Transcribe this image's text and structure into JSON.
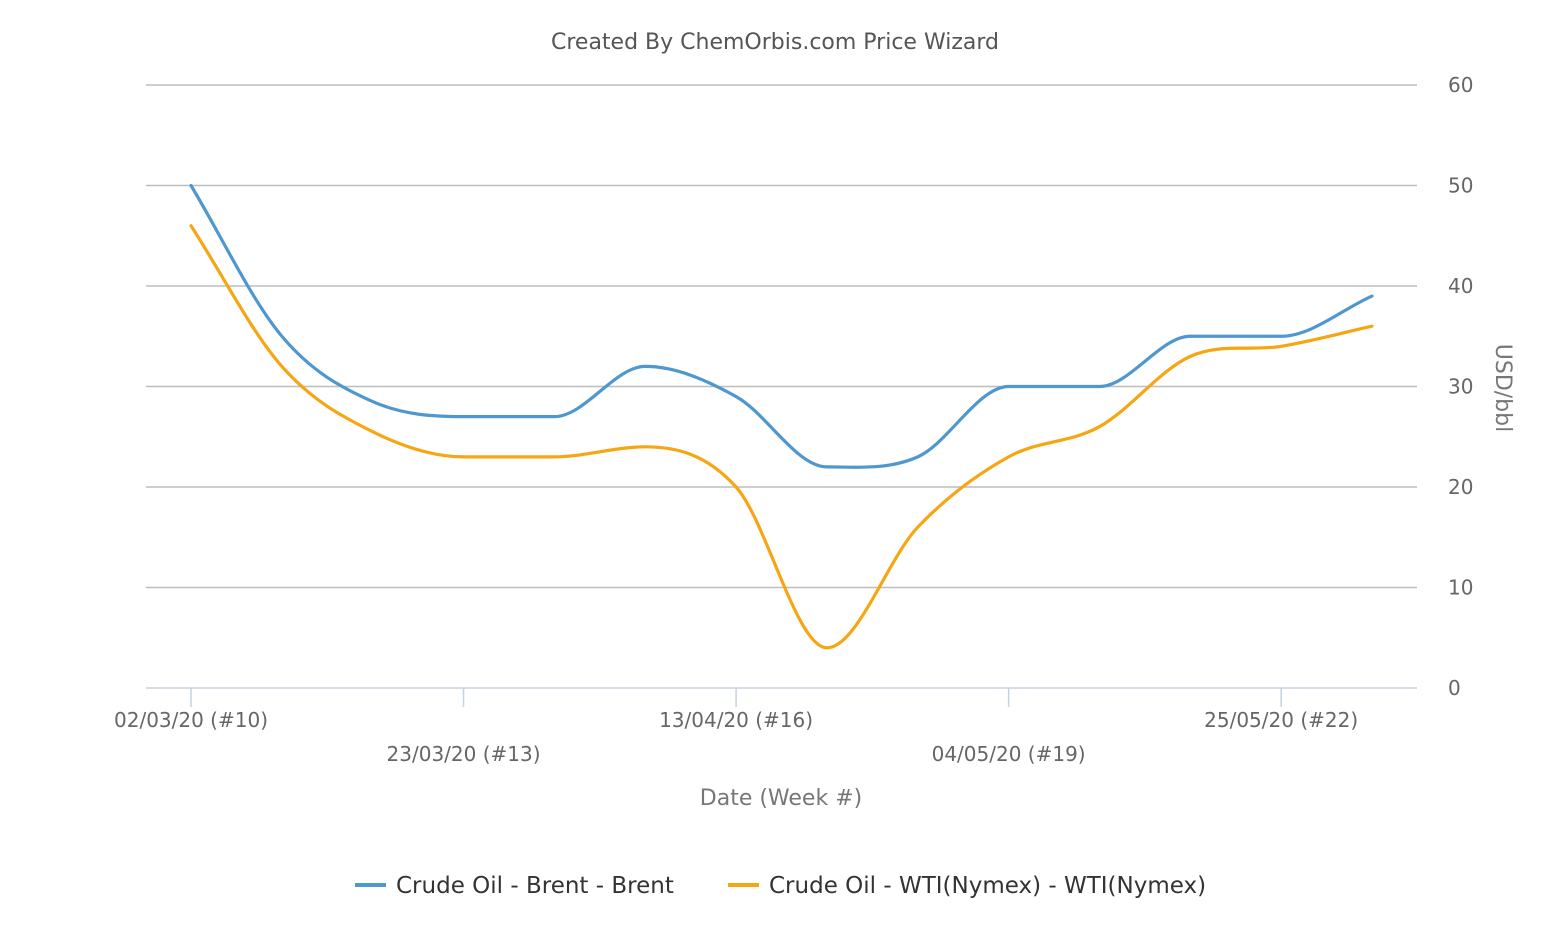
{
  "chart_data": {
    "type": "line",
    "title": "Created By ChemOrbis.com Price Wizard",
    "xlabel": "Date (Week #)",
    "ylabel": "USD/bbl",
    "ylim": [
      0,
      60
    ],
    "yticks": [
      0,
      10,
      20,
      30,
      40,
      50,
      60
    ],
    "y_axis_side": "right",
    "grid": true,
    "legend_position": "bottom",
    "x_labels": [
      "02/03/20 (#10)",
      "23/03/20 (#13)",
      "13/04/20 (#16)",
      "04/05/20 (#19)",
      "25/05/20 (#22)"
    ],
    "x_label_weeks": [
      10,
      13,
      16,
      19,
      22
    ],
    "x": [
      10,
      11,
      12,
      13,
      14,
      15,
      16,
      17,
      18,
      19,
      20,
      21,
      22,
      23
    ],
    "series": [
      {
        "name": "Crude Oil - Brent - Brent",
        "color": "#4e97cf",
        "values": [
          50,
          35,
          28.5,
          27,
          27,
          32,
          29,
          22,
          23,
          30,
          30,
          35,
          35,
          39
        ]
      },
      {
        "name": "Crude Oil - WTI(Nymex) - WTI(Nymex)",
        "color": "#f5a612",
        "values": [
          46,
          32,
          25.5,
          23,
          23,
          24,
          20,
          4,
          16,
          23,
          26,
          33,
          34,
          36
        ]
      }
    ]
  }
}
